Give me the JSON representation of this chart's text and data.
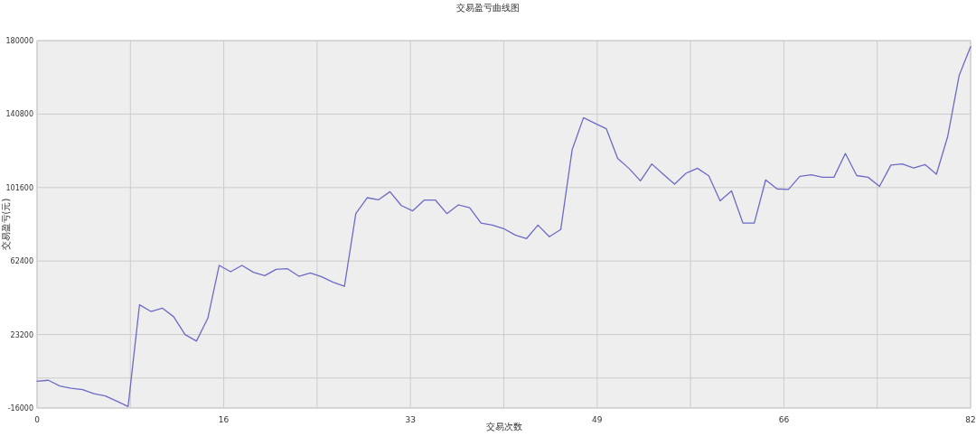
{
  "chart_data": {
    "type": "line",
    "title": "交易盈亏曲线图",
    "xlabel": "交易次数",
    "ylabel": "交易盈亏(元)",
    "x": [
      0,
      1,
      2,
      3,
      4,
      5,
      6,
      7,
      8,
      9,
      10,
      11,
      12,
      13,
      14,
      15,
      16,
      17,
      18,
      19,
      20,
      21,
      22,
      23,
      24,
      25,
      26,
      27,
      28,
      29,
      30,
      31,
      32,
      33,
      34,
      35,
      36,
      37,
      38,
      39,
      40,
      41,
      42,
      43,
      44,
      45,
      46,
      47,
      48,
      49,
      50,
      51,
      52,
      53,
      54,
      55,
      56,
      57,
      58,
      59,
      60,
      61,
      62,
      63,
      64,
      65,
      66,
      67,
      68,
      69,
      70,
      71,
      72,
      73,
      74,
      75,
      76,
      77,
      78,
      79,
      80,
      81,
      82
    ],
    "series": [
      {
        "color": "#6b6bc6",
        "values": [
          -1700,
          -1200,
          -4300,
          -5500,
          -6200,
          -8400,
          -9600,
          -12300,
          -15200,
          39100,
          35500,
          37300,
          32700,
          23200,
          19700,
          31900,
          60100,
          56700,
          60100,
          56400,
          54600,
          58000,
          58300,
          54300,
          56100,
          54000,
          51100,
          48900,
          87700,
          96200,
          95100,
          99400,
          92000,
          89200,
          94900,
          94900,
          87700,
          92400,
          90800,
          82700,
          81600,
          79700,
          76300,
          74400,
          81600,
          75400,
          79200,
          121700,
          138900,
          135900,
          133000,
          117200,
          111800,
          105200,
          114200,
          108700,
          103400,
          109200,
          111900,
          107900,
          94500,
          99800,
          82700,
          82700,
          105700,
          100900,
          100600,
          107600,
          108400,
          107100,
          107100,
          119800,
          108000,
          107100,
          102200,
          113600,
          114200,
          112000,
          113900,
          108700,
          129100,
          161500,
          176800
        ]
      }
    ],
    "xlim": [
      0,
      82
    ],
    "xticks": [
      0,
      {
        "value": 8.2,
        "label": null
      },
      {
        "value": 16.4,
        "label": "16"
      },
      {
        "value": 24.6,
        "label": null
      },
      {
        "value": 32.8,
        "label": "33"
      },
      {
        "value": 41,
        "label": null
      },
      {
        "value": 49.2,
        "label": "49"
      },
      {
        "value": 57.4,
        "label": null
      },
      {
        "value": 65.6,
        "label": "66"
      },
      {
        "value": 73.8,
        "label": null
      },
      82
    ],
    "ylim": [
      -16000,
      180000
    ],
    "yticks": [
      -16000,
      {
        "value": 0,
        "label": null
      },
      23200,
      62400,
      101600,
      140800,
      180000
    ],
    "grid": true,
    "marker": "none",
    "line_style": "solid"
  }
}
